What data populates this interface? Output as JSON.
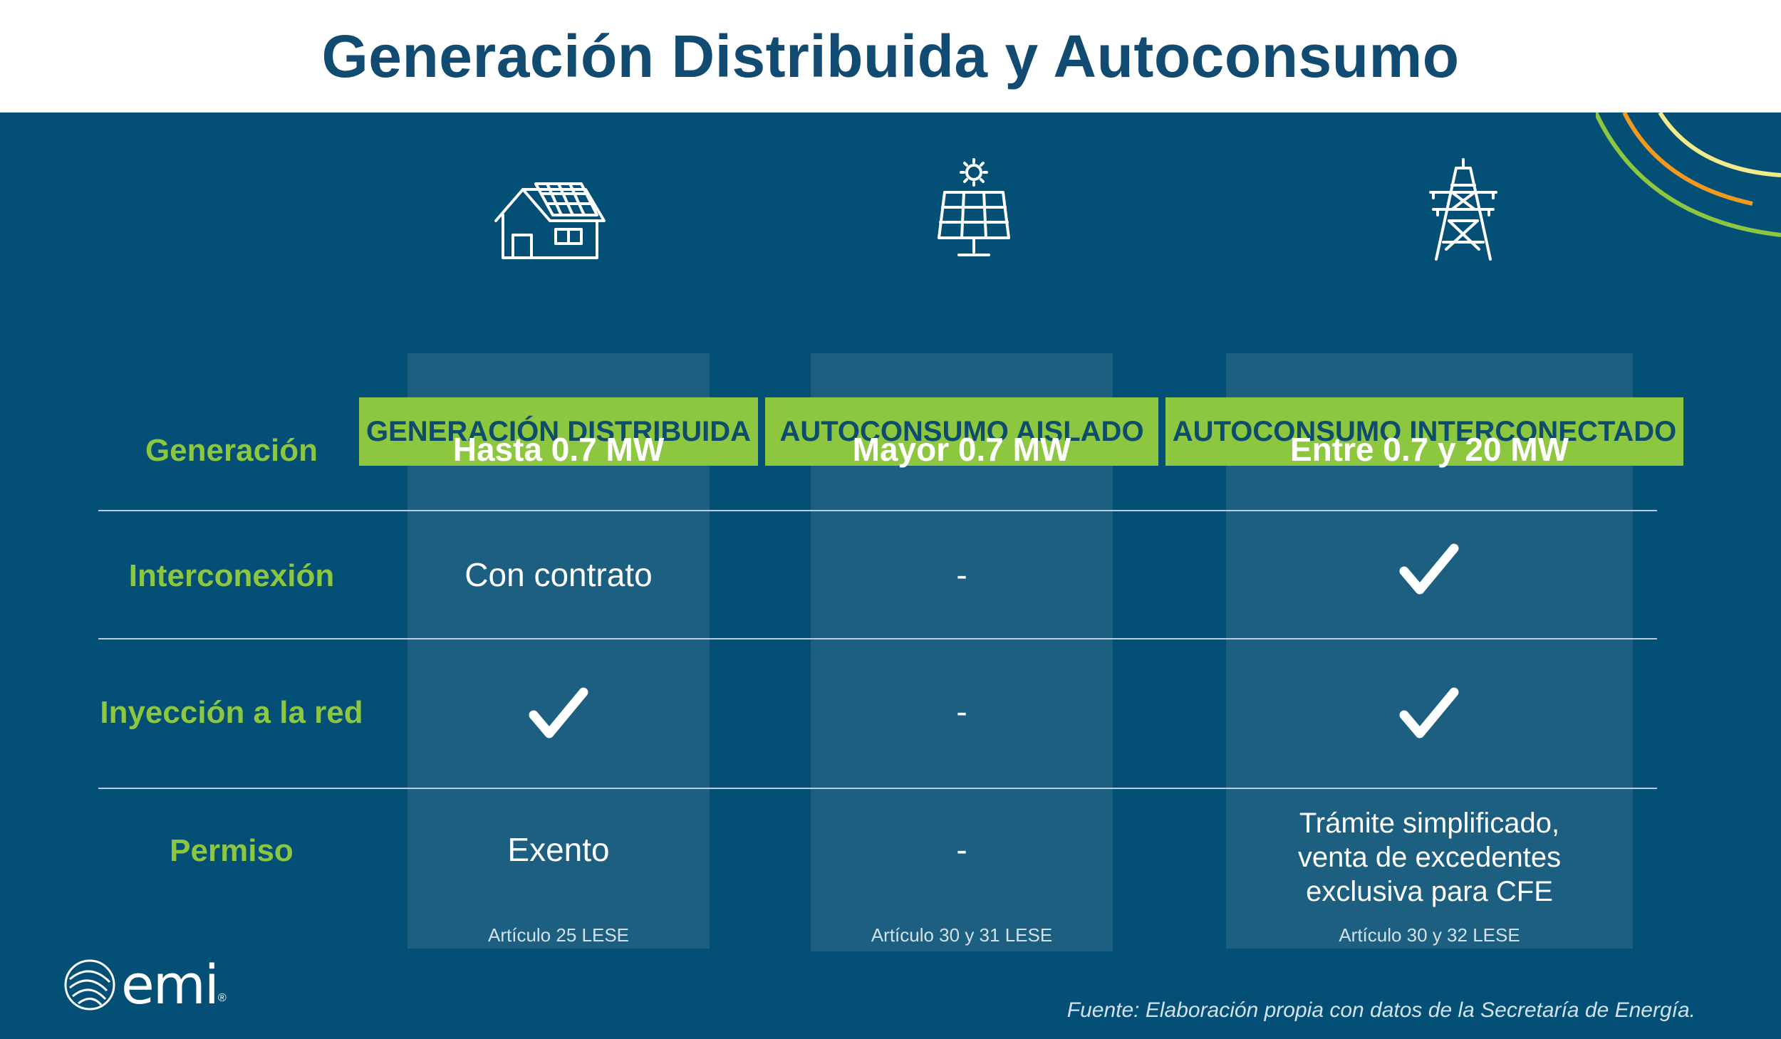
{
  "title": "Generación Distribuida y Autoconsumo",
  "colors": {
    "navy": "#034f76",
    "column": "#1c5f81",
    "green": "#8dc63f",
    "title": "#114b72"
  },
  "columns": [
    {
      "icon": "house-solar-icon",
      "label": "GENERACIÓN DISTRIBUIDA"
    },
    {
      "icon": "solar-panel-sun-icon",
      "label": "AUTOCONSUMO AISLADO"
    },
    {
      "icon": "transmission-tower-icon",
      "label": "AUTOCONSUMO INTERCONECTADO"
    }
  ],
  "rows": [
    {
      "label": "Generación",
      "cells": [
        "Hasta 0.7 MW",
        "Mayor 0.7 MW",
        "Entre 0.7 y 20 MW"
      ]
    },
    {
      "label": "Interconexión",
      "cells": [
        "Con contrato",
        "-",
        "check"
      ]
    },
    {
      "label": "Inyección a la red",
      "cells": [
        "check",
        "-",
        "check"
      ]
    },
    {
      "label": "Permiso",
      "cells": [
        "Exento",
        "-",
        "Trámite simplificado, venta de excedentes exclusiva para CFE"
      ],
      "permiso_lines": [
        "Trámite simplificado,",
        "venta de excedentes",
        "exclusiva para CFE"
      ]
    }
  ],
  "notes": [
    "Artículo 25 LESE",
    "Artículo 30 y 31 LESE",
    "Artículo 30 y 32 LESE"
  ],
  "logo": {
    "text": "emi",
    "reg": "®"
  },
  "source": "Fuente: Elaboración propia con datos de la Secretaría de Energía."
}
